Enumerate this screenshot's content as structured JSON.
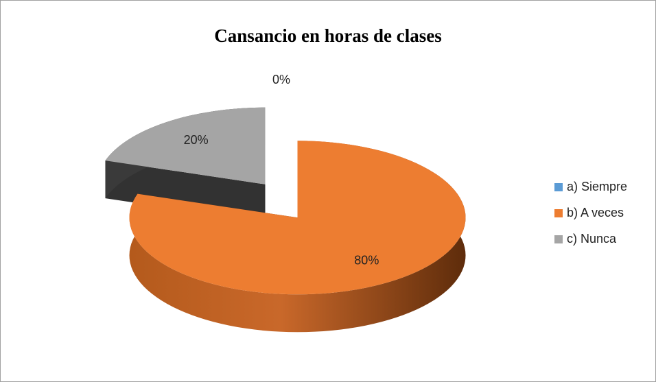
{
  "chart_data": {
    "type": "pie",
    "title": "Cansancio en horas de clases",
    "categories": [
      "a) Siempre",
      "b) A veces",
      "c) Nunca"
    ],
    "values": [
      0,
      80,
      20
    ],
    "value_labels": [
      "0%",
      "80%",
      "20%"
    ],
    "colors": [
      "#5b9bd5",
      "#ed7d31",
      "#a5a5a5"
    ],
    "legend": "right"
  }
}
